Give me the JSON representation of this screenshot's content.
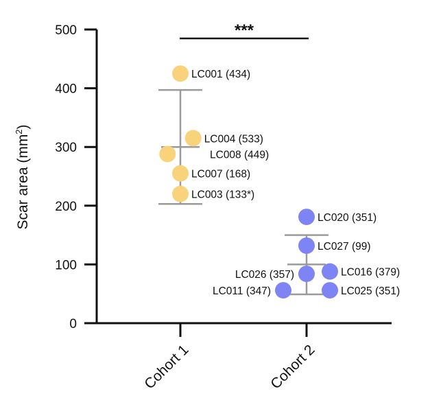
{
  "chart_data": {
    "type": "scatter",
    "ylabel": "Scar area (mm²)",
    "ylabel_main": "Scar area (mm",
    "ylabel_sup": "2",
    "ylabel_close": ")",
    "ylim": [
      0,
      500
    ],
    "yticks": [
      0,
      100,
      200,
      300,
      400,
      500
    ],
    "categories": [
      "Cohort 1",
      "Cohort 2"
    ],
    "significance": "***",
    "grid": false,
    "colors": {
      "cohort_1": "#F9D27C",
      "cohort_2": "#7F84F4",
      "error_bar": "#9A9A9A",
      "axis": "#111111"
    },
    "series": [
      {
        "category": "Cohort 1",
        "error_bar": {
          "mean": 300,
          "upper": 397,
          "lower": 203
        },
        "points": [
          {
            "id": "LC001",
            "note": "(434)",
            "label": "LC001 (434)",
            "y": 425,
            "offset": 0,
            "side": "right"
          },
          {
            "id": "LC004",
            "note": "(533)",
            "label": "LC004 (533)",
            "y": 315,
            "offset": 0.55,
            "side": "right"
          },
          {
            "id": "LC008",
            "note": "(449)",
            "label": "LC008 (449)",
            "y": 288,
            "offset": -0.55,
            "side": "right-far"
          },
          {
            "id": "LC007",
            "note": "(168)",
            "label": "LC007 (168)",
            "y": 255,
            "offset": 0,
            "side": "right"
          },
          {
            "id": "LC003",
            "note": "(133*)",
            "label": "LC003 (133*)",
            "y": 220,
            "offset": 0,
            "side": "right"
          }
        ]
      },
      {
        "category": "Cohort 2",
        "error_bar": {
          "mean": 100,
          "upper": 150,
          "lower": 49
        },
        "points": [
          {
            "id": "LC020",
            "note": "(351)",
            "label": "LC020 (351)",
            "y": 181,
            "offset": 0,
            "side": "right"
          },
          {
            "id": "LC027",
            "note": "(99)",
            "label": "LC027 (99)",
            "y": 132,
            "offset": 0,
            "side": "right"
          },
          {
            "id": "LC026",
            "note": "(357)",
            "label": "LC026 (357)",
            "y": 84,
            "offset": 0,
            "side": "left"
          },
          {
            "id": "LC016",
            "note": "(379)",
            "label": "LC016 (379)",
            "y": 88,
            "offset": 1,
            "side": "right"
          },
          {
            "id": "LC011",
            "note": "(347)",
            "label": "LC011 (347)",
            "y": 56,
            "offset": -1,
            "side": "left"
          },
          {
            "id": "LC025",
            "note": "(351)",
            "label": "LC025 (351)",
            "y": 56,
            "offset": 1,
            "side": "right"
          }
        ]
      }
    ]
  }
}
